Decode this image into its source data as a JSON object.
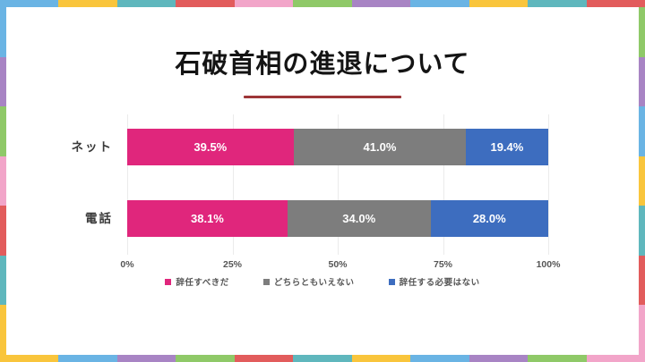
{
  "title": {
    "text": "石破首相の進退について",
    "underline_color": "#9d3638"
  },
  "frame": {
    "top": [
      "#6ab4e4",
      "#f9c53c",
      "#5fb7bd",
      "#e25c5c",
      "#f2a5c9",
      "#8fc968",
      "#a884c4",
      "#6ab4e4",
      "#f9c53c",
      "#5fb7bd",
      "#e25c5c"
    ],
    "right": [
      "#8fc968",
      "#a884c4",
      "#6ab4e4",
      "#f9c53c",
      "#5fb7bd",
      "#e25c5c",
      "#f2a5c9"
    ],
    "bottom": [
      "#f9c53c",
      "#6ab4e4",
      "#a884c4",
      "#8fc968",
      "#e25c5c",
      "#5fb7bd",
      "#f9c53c",
      "#6ab4e4",
      "#a884c4",
      "#8fc968",
      "#f2a5c9"
    ],
    "left": [
      "#6ab4e4",
      "#a884c4",
      "#8fc968",
      "#f2a5c9",
      "#e25c5c",
      "#5fb7bd",
      "#f9c53c"
    ]
  },
  "chart_data": {
    "type": "bar",
    "orientation": "horizontal",
    "stacked": true,
    "title": "石破首相の進退について",
    "categories": [
      "ネット",
      "電話"
    ],
    "series": [
      {
        "name": "辞任すべきだ",
        "color": "#e0267c",
        "values": [
          39.5,
          38.1
        ]
      },
      {
        "name": "どちらともいえない",
        "color": "#7d7d7d",
        "values": [
          41.0,
          34.0
        ]
      },
      {
        "name": "辞任する必要はない",
        "color": "#3d6dbf",
        "values": [
          19.4,
          28.0
        ]
      }
    ],
    "value_labels": [
      [
        "39.5%",
        "41.0%",
        "19.4%"
      ],
      [
        "38.1%",
        "34.0%",
        "28.0%"
      ]
    ],
    "x_ticks": [
      "0%",
      "25%",
      "50%",
      "75%",
      "100%"
    ],
    "xlim": [
      0,
      100
    ],
    "grid": true,
    "legend_position": "bottom",
    "value_label_color": "#ffffff"
  },
  "layout_rows": {
    "tops": [
      16,
      96
    ],
    "height": 41
  }
}
